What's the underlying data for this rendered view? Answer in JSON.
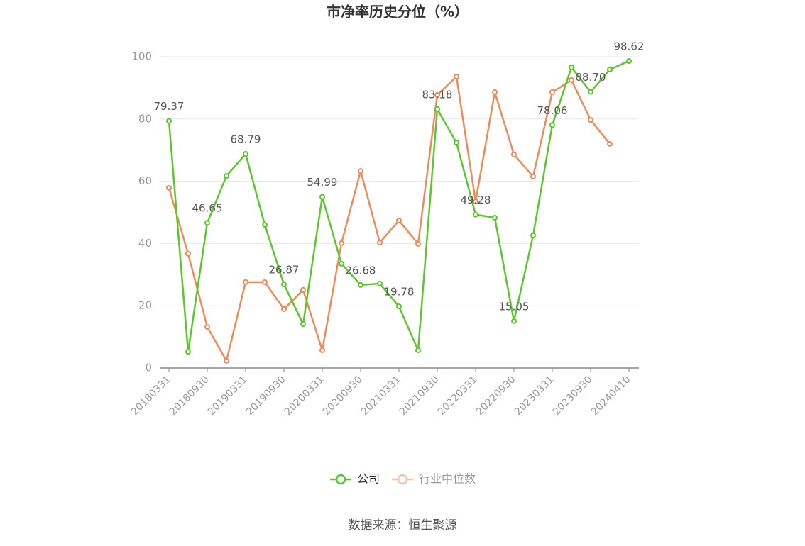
{
  "chart_data": {
    "type": "line",
    "title": "市净率历史分位（%）",
    "categories": [
      "20180331",
      null,
      "20180930",
      null,
      "20190331",
      null,
      "20190930",
      null,
      "20200331",
      null,
      "20200930",
      null,
      "20210331",
      null,
      "20210930",
      null,
      "20220331",
      null,
      "20220930",
      null,
      "20230331",
      null,
      "20230930",
      null,
      "20240410"
    ],
    "series": [
      {
        "name": "公司",
        "color": "#5ac72c",
        "values": [
          79.37,
          5.2,
          46.65,
          61.7,
          68.79,
          46.0,
          26.87,
          14.1,
          54.99,
          33.5,
          26.68,
          27.1,
          19.78,
          5.7,
          83.18,
          72.4,
          49.28,
          48.3,
          15.05,
          42.6,
          78.06,
          96.6,
          88.7,
          95.9,
          98.62
        ],
        "value_labels": [
          "79.37",
          null,
          "46.65",
          null,
          "68.79",
          null,
          "26.87",
          null,
          "54.99",
          null,
          "26.68",
          null,
          "19.78",
          null,
          "83.18",
          null,
          "49.28",
          null,
          "15.05",
          null,
          "78.06",
          null,
          "88.70",
          null,
          "98.62"
        ]
      },
      {
        "name": "行业中位数",
        "color": "#f08a58",
        "values": [
          57.9,
          36.7,
          13.2,
          2.3,
          27.6,
          27.6,
          18.9,
          25.1,
          5.7,
          40.1,
          63.3,
          40.3,
          47.4,
          39.9,
          87.7,
          93.6,
          53.5,
          88.6,
          68.6,
          61.5,
          88.6,
          92.5,
          79.7,
          72.0,
          null
        ]
      }
    ],
    "ylim": [
      0,
      100
    ],
    "yticks": [
      0,
      20,
      40,
      60,
      80,
      100
    ],
    "grid": true,
    "source": "数据来源：恒生聚源"
  }
}
